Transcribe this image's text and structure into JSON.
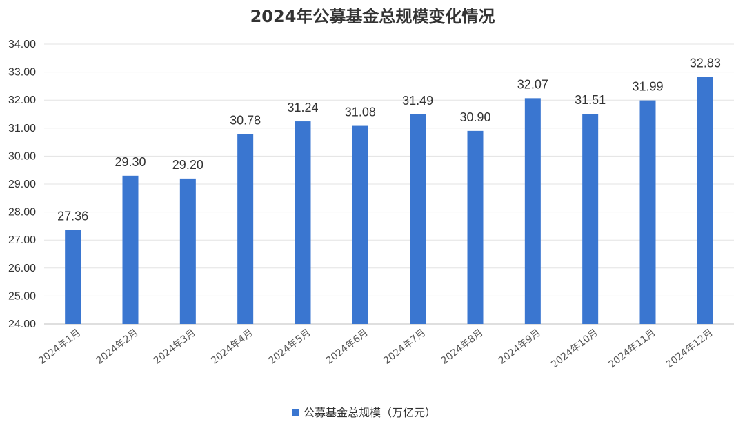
{
  "chart_data": {
    "type": "bar",
    "title": "2024年公募基金总规模变化情况",
    "categories": [
      "2024年1月",
      "2024年2月",
      "2024年3月",
      "2024年4月",
      "2024年5月",
      "2024年6月",
      "2024年7月",
      "2024年8月",
      "2024年9月",
      "2024年10月",
      "2024年11月",
      "2024年12月"
    ],
    "series": [
      {
        "name": "公募基金总规模（万亿元）",
        "values": [
          27.36,
          29.3,
          29.2,
          30.78,
          31.24,
          31.08,
          31.49,
          30.9,
          32.07,
          31.51,
          31.99,
          32.83
        ],
        "labels": [
          "27.36",
          "29.30",
          "29.20",
          "30.78",
          "31.24",
          "31.08",
          "31.49",
          "30.90",
          "32.07",
          "31.51",
          "31.99",
          "32.83"
        ],
        "color": "#3a76d0"
      }
    ],
    "ylim": [
      24,
      34
    ],
    "yticks": [
      "24.00",
      "25.00",
      "26.00",
      "27.00",
      "28.00",
      "29.00",
      "30.00",
      "31.00",
      "32.00",
      "33.00",
      "34.00"
    ],
    "grid": true,
    "legend_position": "bottom"
  }
}
